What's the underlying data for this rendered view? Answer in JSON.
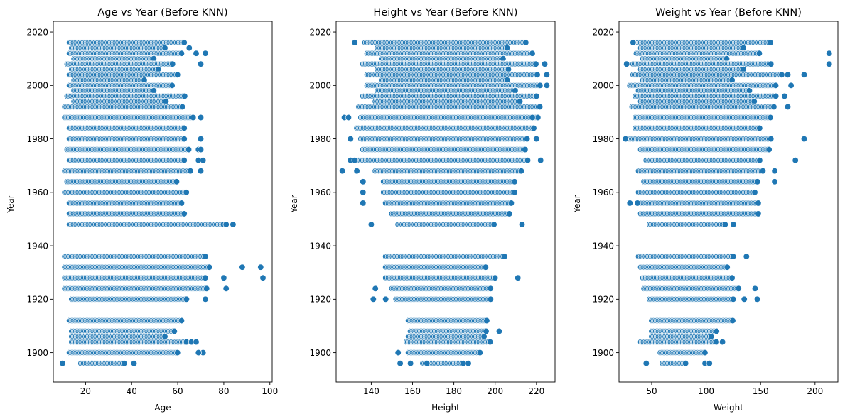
{
  "chart_data": [
    {
      "type": "scatter",
      "title": "Age vs Year (Before KNN)",
      "xlabel": "Age",
      "ylabel": "Year",
      "xlim": [
        6,
        101
      ],
      "ylim": [
        1889,
        2024
      ],
      "xticks": [
        20,
        40,
        60,
        80,
        100
      ],
      "yticks": [
        1900,
        1920,
        1940,
        1960,
        1980,
        2000,
        2020
      ],
      "grid": false,
      "color": "#1f77b4",
      "rows": [
        {
          "year": 2016,
          "x_min": 13,
          "x_max": 63
        },
        {
          "year": 2014,
          "x_min": 14,
          "x_max": 55
        },
        {
          "year": 2012,
          "x_min": 13,
          "x_max": 62
        },
        {
          "year": 2010,
          "x_min": 15,
          "x_max": 50
        },
        {
          "year": 2008,
          "x_min": 12,
          "x_max": 58
        },
        {
          "year": 2006,
          "x_min": 14,
          "x_max": 52
        },
        {
          "year": 2004,
          "x_min": 13,
          "x_max": 60
        },
        {
          "year": 2002,
          "x_min": 15,
          "x_max": 46
        },
        {
          "year": 2000,
          "x_min": 13,
          "x_max": 58
        },
        {
          "year": 1998,
          "x_min": 15,
          "x_max": 50
        },
        {
          "year": 1996,
          "x_min": 12,
          "x_max": 63
        },
        {
          "year": 1994,
          "x_min": 15,
          "x_max": 55
        },
        {
          "year": 1992,
          "x_min": 11,
          "x_max": 62
        },
        {
          "year": 1988,
          "x_min": 11,
          "x_max": 67
        },
        {
          "year": 1984,
          "x_min": 13,
          "x_max": 63
        },
        {
          "year": 1980,
          "x_min": 13,
          "x_max": 63
        },
        {
          "year": 1976,
          "x_min": 12,
          "x_max": 65
        },
        {
          "year": 1972,
          "x_min": 13,
          "x_max": 63
        },
        {
          "year": 1968,
          "x_min": 11,
          "x_max": 66
        },
        {
          "year": 1964,
          "x_min": 12,
          "x_max": 60
        },
        {
          "year": 1960,
          "x_min": 11,
          "x_max": 64
        },
        {
          "year": 1956,
          "x_min": 13,
          "x_max": 62
        },
        {
          "year": 1952,
          "x_min": 13,
          "x_max": 63
        },
        {
          "year": 1948,
          "x_min": 13,
          "x_max": 80
        },
        {
          "year": 1936,
          "x_min": 11,
          "x_max": 72
        },
        {
          "year": 1932,
          "x_min": 11,
          "x_max": 74
        },
        {
          "year": 1928,
          "x_min": 11,
          "x_max": 72
        },
        {
          "year": 1924,
          "x_min": 11,
          "x_max": 73
        },
        {
          "year": 1920,
          "x_min": 14,
          "x_max": 64
        },
        {
          "year": 1912,
          "x_min": 13,
          "x_max": 62
        },
        {
          "year": 1908,
          "x_min": 14,
          "x_max": 59
        },
        {
          "year": 1906,
          "x_min": 14,
          "x_max": 55
        },
        {
          "year": 1904,
          "x_min": 14,
          "x_max": 64
        },
        {
          "year": 1900,
          "x_min": 13,
          "x_max": 60
        },
        {
          "year": 1896,
          "x_min": 18,
          "x_max": 37
        }
      ],
      "outliers": [
        {
          "x": 65,
          "y": 2014
        },
        {
          "x": 68,
          "y": 2012
        },
        {
          "x": 72,
          "y": 2012
        },
        {
          "x": 70,
          "y": 2008
        },
        {
          "x": 70,
          "y": 1988
        },
        {
          "x": 70,
          "y": 1980
        },
        {
          "x": 69,
          "y": 1976
        },
        {
          "x": 70,
          "y": 1976
        },
        {
          "x": 69,
          "y": 1972
        },
        {
          "x": 71,
          "y": 1972
        },
        {
          "x": 70,
          "y": 1968
        },
        {
          "x": 84,
          "y": 1948
        },
        {
          "x": 81,
          "y": 1948
        },
        {
          "x": 88,
          "y": 1932
        },
        {
          "x": 96,
          "y": 1932
        },
        {
          "x": 97,
          "y": 1928
        },
        {
          "x": 80,
          "y": 1928
        },
        {
          "x": 81,
          "y": 1924
        },
        {
          "x": 72,
          "y": 1920
        },
        {
          "x": 66,
          "y": 1904
        },
        {
          "x": 68,
          "y": 1904
        },
        {
          "x": 71,
          "y": 1900
        },
        {
          "x": 69,
          "y": 1900
        },
        {
          "x": 10,
          "y": 1896
        },
        {
          "x": 41,
          "y": 1896
        }
      ]
    },
    {
      "type": "scatter",
      "title": "Height vs Year (Before KNN)",
      "xlabel": "Height",
      "ylabel": "Year",
      "xlim": [
        123,
        229
      ],
      "ylim": [
        1889,
        2024
      ],
      "xticks": [
        140,
        160,
        180,
        200,
        220
      ],
      "yticks": [
        1900,
        1920,
        1940,
        1960,
        1980,
        2000,
        2020
      ],
      "grid": false,
      "color": "#1f77b4",
      "rows": [
        {
          "year": 2016,
          "x_min": 137,
          "x_max": 215
        },
        {
          "year": 2014,
          "x_min": 143,
          "x_max": 206
        },
        {
          "year": 2012,
          "x_min": 138,
          "x_max": 218
        },
        {
          "year": 2010,
          "x_min": 145,
          "x_max": 204
        },
        {
          "year": 2008,
          "x_min": 136,
          "x_max": 220
        },
        {
          "year": 2006,
          "x_min": 143,
          "x_max": 207
        },
        {
          "year": 2004,
          "x_min": 138,
          "x_max": 221
        },
        {
          "year": 2002,
          "x_min": 145,
          "x_max": 206
        },
        {
          "year": 2000,
          "x_min": 138,
          "x_max": 222
        },
        {
          "year": 1998,
          "x_min": 143,
          "x_max": 210
        },
        {
          "year": 1996,
          "x_min": 136,
          "x_max": 220
        },
        {
          "year": 1994,
          "x_min": 142,
          "x_max": 212
        },
        {
          "year": 1992,
          "x_min": 134,
          "x_max": 222
        },
        {
          "year": 1988,
          "x_min": 135,
          "x_max": 221
        },
        {
          "year": 1984,
          "x_min": 133,
          "x_max": 219
        },
        {
          "year": 1980,
          "x_min": 135,
          "x_max": 216
        },
        {
          "year": 1976,
          "x_min": 136,
          "x_max": 215
        },
        {
          "year": 1972,
          "x_min": 134,
          "x_max": 216
        },
        {
          "year": 1968,
          "x_min": 142,
          "x_max": 213
        },
        {
          "year": 1964,
          "x_min": 146,
          "x_max": 210
        },
        {
          "year": 1960,
          "x_min": 146,
          "x_max": 210
        },
        {
          "year": 1956,
          "x_min": 147,
          "x_max": 208
        },
        {
          "year": 1952,
          "x_min": 150,
          "x_max": 207
        },
        {
          "year": 1948,
          "x_min": 153,
          "x_max": 200
        },
        {
          "year": 1936,
          "x_min": 147,
          "x_max": 205
        },
        {
          "year": 1932,
          "x_min": 147,
          "x_max": 196
        },
        {
          "year": 1928,
          "x_min": 147,
          "x_max": 200
        },
        {
          "year": 1924,
          "x_min": 150,
          "x_max": 198
        },
        {
          "year": 1920,
          "x_min": 152,
          "x_max": 198
        },
        {
          "year": 1912,
          "x_min": 158,
          "x_max": 196
        },
        {
          "year": 1908,
          "x_min": 159,
          "x_max": 196
        },
        {
          "year": 1906,
          "x_min": 158,
          "x_max": 195
        },
        {
          "year": 1904,
          "x_min": 157,
          "x_max": 198
        },
        {
          "year": 1900,
          "x_min": 158,
          "x_max": 193
        },
        {
          "year": 1896,
          "x_min": 165,
          "x_max": 185
        }
      ],
      "outliers": [
        {
          "x": 127,
          "y": 1988
        },
        {
          "x": 129,
          "y": 1988
        },
        {
          "x": 126,
          "y": 1968
        },
        {
          "x": 130,
          "y": 1972
        },
        {
          "x": 132,
          "y": 1972
        },
        {
          "x": 132,
          "y": 2016
        },
        {
          "x": 130,
          "y": 1980
        },
        {
          "x": 133,
          "y": 1968
        },
        {
          "x": 136,
          "y": 1964
        },
        {
          "x": 136,
          "y": 1960
        },
        {
          "x": 136,
          "y": 1956
        },
        {
          "x": 140,
          "y": 1948
        },
        {
          "x": 224,
          "y": 2008
        },
        {
          "x": 225,
          "y": 2004
        },
        {
          "x": 225,
          "y": 2000
        },
        {
          "x": 222,
          "y": 1972
        },
        {
          "x": 213,
          "y": 1948
        },
        {
          "x": 211,
          "y": 1928
        },
        {
          "x": 142,
          "y": 1924
        },
        {
          "x": 141,
          "y": 1920
        },
        {
          "x": 147,
          "y": 1920
        },
        {
          "x": 153,
          "y": 1900
        },
        {
          "x": 154,
          "y": 1896
        },
        {
          "x": 159,
          "y": 1896
        },
        {
          "x": 167,
          "y": 1896
        },
        {
          "x": 187,
          "y": 1896
        },
        {
          "x": 202,
          "y": 1908
        },
        {
          "x": 218,
          "y": 2012
        },
        {
          "x": 220,
          "y": 1996
        },
        {
          "x": 218,
          "y": 1988
        },
        {
          "x": 220,
          "y": 1980
        }
      ]
    },
    {
      "type": "scatter",
      "title": "Weight vs Year (Before KNN)",
      "xlabel": "Weight",
      "ylabel": "Year",
      "xlim": [
        20,
        221
      ],
      "ylim": [
        1889,
        2024
      ],
      "xticks": [
        50,
        100,
        150,
        200
      ],
      "yticks": [
        1900,
        1920,
        1940,
        1960,
        1980,
        2000,
        2020
      ],
      "grid": false,
      "color": "#1f77b4",
      "rows": [
        {
          "year": 2016,
          "x_min": 35,
          "x_max": 160
        },
        {
          "year": 2014,
          "x_min": 40,
          "x_max": 135
        },
        {
          "year": 2012,
          "x_min": 36,
          "x_max": 150
        },
        {
          "year": 2010,
          "x_min": 42,
          "x_max": 120
        },
        {
          "year": 2008,
          "x_min": 33,
          "x_max": 160
        },
        {
          "year": 2006,
          "x_min": 40,
          "x_max": 135
        },
        {
          "year": 2004,
          "x_min": 33,
          "x_max": 170
        },
        {
          "year": 2002,
          "x_min": 42,
          "x_max": 125
        },
        {
          "year": 2000,
          "x_min": 30,
          "x_max": 165
        },
        {
          "year": 1998,
          "x_min": 38,
          "x_max": 140
        },
        {
          "year": 1996,
          "x_min": 35,
          "x_max": 165
        },
        {
          "year": 1994,
          "x_min": 40,
          "x_max": 145
        },
        {
          "year": 1992,
          "x_min": 32,
          "x_max": 163
        },
        {
          "year": 1988,
          "x_min": 35,
          "x_max": 160
        },
        {
          "year": 1984,
          "x_min": 35,
          "x_max": 150
        },
        {
          "year": 1980,
          "x_min": 28,
          "x_max": 160
        },
        {
          "year": 1976,
          "x_min": 40,
          "x_max": 158
        },
        {
          "year": 1972,
          "x_min": 45,
          "x_max": 150
        },
        {
          "year": 1968,
          "x_min": 38,
          "x_max": 153
        },
        {
          "year": 1964,
          "x_min": 43,
          "x_max": 148
        },
        {
          "year": 1960,
          "x_min": 38,
          "x_max": 145
        },
        {
          "year": 1956,
          "x_min": 40,
          "x_max": 148
        },
        {
          "year": 1952,
          "x_min": 40,
          "x_max": 148
        },
        {
          "year": 1948,
          "x_min": 48,
          "x_max": 118
        },
        {
          "year": 1936,
          "x_min": 38,
          "x_max": 125
        },
        {
          "year": 1932,
          "x_min": 40,
          "x_max": 120
        },
        {
          "year": 1928,
          "x_min": 42,
          "x_max": 125
        },
        {
          "year": 1924,
          "x_min": 43,
          "x_max": 130
        },
        {
          "year": 1920,
          "x_min": 48,
          "x_max": 125
        },
        {
          "year": 1912,
          "x_min": 50,
          "x_max": 125
        },
        {
          "year": 1908,
          "x_min": 50,
          "x_max": 110
        },
        {
          "year": 1906,
          "x_min": 50,
          "x_max": 105
        },
        {
          "year": 1904,
          "x_min": 40,
          "x_max": 110
        },
        {
          "year": 1900,
          "x_min": 58,
          "x_max": 100
        },
        {
          "year": 1896,
          "x_min": 60,
          "x_max": 82
        }
      ],
      "outliers": [
        {
          "x": 213,
          "y": 2012
        },
        {
          "x": 213,
          "y": 2008
        },
        {
          "x": 190,
          "y": 2004
        },
        {
          "x": 175,
          "y": 2004
        },
        {
          "x": 178,
          "y": 2000
        },
        {
          "x": 172,
          "y": 1996
        },
        {
          "x": 175,
          "y": 1992
        },
        {
          "x": 190,
          "y": 1980
        },
        {
          "x": 182,
          "y": 1972
        },
        {
          "x": 163,
          "y": 1968
        },
        {
          "x": 163,
          "y": 1964
        },
        {
          "x": 30,
          "y": 1956
        },
        {
          "x": 37,
          "y": 1956
        },
        {
          "x": 125,
          "y": 1948
        },
        {
          "x": 137,
          "y": 1936
        },
        {
          "x": 145,
          "y": 1924
        },
        {
          "x": 147,
          "y": 1920
        },
        {
          "x": 135,
          "y": 1920
        },
        {
          "x": 45,
          "y": 1896
        },
        {
          "x": 99,
          "y": 1896
        },
        {
          "x": 103,
          "y": 1896
        },
        {
          "x": 27,
          "y": 2008
        },
        {
          "x": 26,
          "y": 1980
        },
        {
          "x": 33,
          "y": 2016
        },
        {
          "x": 115,
          "y": 1904
        }
      ]
    }
  ]
}
